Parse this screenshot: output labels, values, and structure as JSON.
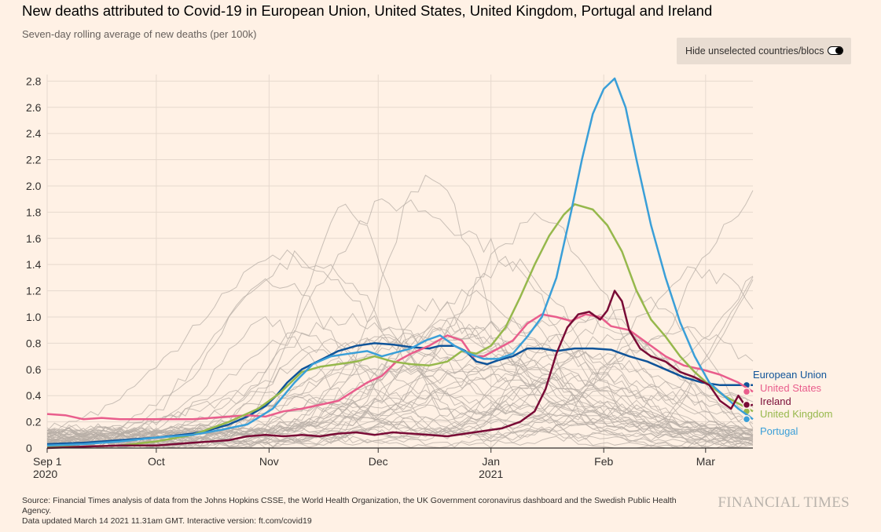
{
  "header": {
    "title": "New deaths attributed to Covid-19 in European Union, United States, United Kingdom, Portugal and Ireland",
    "subtitle": "Seven-day rolling average of new deaths (per 100k)"
  },
  "toggle": {
    "label": "Hide unselected countries/blocs",
    "state": "off"
  },
  "footer": {
    "source": "Source: Financial Times analysis of data from the Johns Hopkins CSSE, the World Health Organization, the UK Government coronavirus dashboard and the Swedish Public Health Agency.",
    "updated": "Data updated March 14 2021 11.31am GMT. Interactive version: ft.com/covid19",
    "brand": "FINANCIAL TIMES"
  },
  "colors": {
    "background": "#fff1e5",
    "grid": "#e6d9ce",
    "axis": "#33302e",
    "background_countries": "#b7ada5",
    "eu": "#0f5499",
    "us": "#e95d8c",
    "uk": "#96b84c",
    "portugal": "#3a9fd8",
    "ireland": "#790b36"
  },
  "chart_data": {
    "type": "line",
    "title": "New deaths attributed to Covid-19 in European Union, United States, United Kingdom, Portugal and Ireland",
    "ylabel": "Seven-day rolling average of new deaths (per 100k)",
    "x_unit": "days since 2020-09-01",
    "xlim": [
      0,
      194
    ],
    "ylim": [
      0,
      2.85
    ],
    "yticks": [
      0,
      0.2,
      0.4,
      0.6,
      0.8,
      1.0,
      1.2,
      1.4,
      1.6,
      1.8,
      2.0,
      2.2,
      2.4,
      2.6,
      2.8
    ],
    "ytick_labels": [
      "0",
      "0.2",
      "0.4",
      "0.6",
      "0.8",
      "1.0",
      "1.2",
      "1.4",
      "1.6",
      "1.8",
      "2.0",
      "2.2",
      "2.4",
      "2.6",
      "2.8"
    ],
    "xticks": [
      {
        "x": 0,
        "label": "Sep 1",
        "sub": "2020"
      },
      {
        "x": 30,
        "label": "Oct",
        "sub": ""
      },
      {
        "x": 61,
        "label": "Nov",
        "sub": ""
      },
      {
        "x": 91,
        "label": "Dec",
        "sub": ""
      },
      {
        "x": 122,
        "label": "Jan",
        "sub": "2021"
      },
      {
        "x": 153,
        "label": "Feb",
        "sub": ""
      },
      {
        "x": 181,
        "label": "Mar",
        "sub": ""
      }
    ],
    "series": [
      {
        "name": "European Union",
        "key": "eu",
        "points": [
          [
            0,
            0.03
          ],
          [
            10,
            0.04
          ],
          [
            20,
            0.06
          ],
          [
            30,
            0.08
          ],
          [
            40,
            0.11
          ],
          [
            45,
            0.14
          ],
          [
            50,
            0.18
          ],
          [
            55,
            0.24
          ],
          [
            60,
            0.32
          ],
          [
            63,
            0.4
          ],
          [
            66,
            0.5
          ],
          [
            70,
            0.6
          ],
          [
            75,
            0.67
          ],
          [
            80,
            0.74
          ],
          [
            85,
            0.78
          ],
          [
            90,
            0.8
          ],
          [
            95,
            0.79
          ],
          [
            100,
            0.77
          ],
          [
            105,
            0.76
          ],
          [
            108,
            0.78
          ],
          [
            112,
            0.78
          ],
          [
            115,
            0.74
          ],
          [
            118,
            0.66
          ],
          [
            121,
            0.64
          ],
          [
            124,
            0.67
          ],
          [
            128,
            0.7
          ],
          [
            132,
            0.76
          ],
          [
            136,
            0.76
          ],
          [
            140,
            0.74
          ],
          [
            145,
            0.76
          ],
          [
            150,
            0.76
          ],
          [
            155,
            0.75
          ],
          [
            160,
            0.7
          ],
          [
            165,
            0.66
          ],
          [
            170,
            0.6
          ],
          [
            175,
            0.54
          ],
          [
            180,
            0.5
          ],
          [
            185,
            0.48
          ],
          [
            190,
            0.48
          ],
          [
            194,
            0.48
          ]
        ]
      },
      {
        "name": "United States",
        "key": "us",
        "points": [
          [
            0,
            0.26
          ],
          [
            5,
            0.25
          ],
          [
            10,
            0.22
          ],
          [
            15,
            0.23
          ],
          [
            20,
            0.22
          ],
          [
            30,
            0.22
          ],
          [
            40,
            0.22
          ],
          [
            45,
            0.23
          ],
          [
            50,
            0.24
          ],
          [
            55,
            0.25
          ],
          [
            60,
            0.24
          ],
          [
            65,
            0.28
          ],
          [
            70,
            0.3
          ],
          [
            75,
            0.33
          ],
          [
            80,
            0.36
          ],
          [
            84,
            0.43
          ],
          [
            88,
            0.5
          ],
          [
            92,
            0.55
          ],
          [
            96,
            0.66
          ],
          [
            100,
            0.72
          ],
          [
            105,
            0.78
          ],
          [
            110,
            0.86
          ],
          [
            114,
            0.82
          ],
          [
            117,
            0.7
          ],
          [
            120,
            0.7
          ],
          [
            124,
            0.76
          ],
          [
            128,
            0.82
          ],
          [
            132,
            0.95
          ],
          [
            136,
            1.02
          ],
          [
            140,
            1.0
          ],
          [
            144,
            0.97
          ],
          [
            148,
            1.02
          ],
          [
            152,
            1.0
          ],
          [
            155,
            0.93
          ],
          [
            160,
            0.9
          ],
          [
            165,
            0.8
          ],
          [
            170,
            0.7
          ],
          [
            175,
            0.63
          ],
          [
            180,
            0.6
          ],
          [
            185,
            0.56
          ],
          [
            190,
            0.5
          ],
          [
            194,
            0.43
          ]
        ]
      },
      {
        "name": "United Kingdom",
        "key": "uk",
        "points": [
          [
            0,
            0.01
          ],
          [
            10,
            0.01
          ],
          [
            20,
            0.02
          ],
          [
            30,
            0.05
          ],
          [
            40,
            0.1
          ],
          [
            50,
            0.2
          ],
          [
            58,
            0.3
          ],
          [
            64,
            0.42
          ],
          [
            70,
            0.58
          ],
          [
            75,
            0.62
          ],
          [
            80,
            0.64
          ],
          [
            85,
            0.66
          ],
          [
            90,
            0.7
          ],
          [
            95,
            0.66
          ],
          [
            100,
            0.64
          ],
          [
            105,
            0.63
          ],
          [
            110,
            0.66
          ],
          [
            114,
            0.74
          ],
          [
            118,
            0.72
          ],
          [
            122,
            0.78
          ],
          [
            126,
            0.92
          ],
          [
            130,
            1.15
          ],
          [
            134,
            1.4
          ],
          [
            138,
            1.62
          ],
          [
            142,
            1.78
          ],
          [
            145,
            1.86
          ],
          [
            150,
            1.82
          ],
          [
            154,
            1.7
          ],
          [
            158,
            1.5
          ],
          [
            162,
            1.2
          ],
          [
            166,
            0.98
          ],
          [
            170,
            0.85
          ],
          [
            174,
            0.7
          ],
          [
            178,
            0.58
          ],
          [
            182,
            0.48
          ],
          [
            186,
            0.4
          ],
          [
            190,
            0.34
          ],
          [
            194,
            0.28
          ]
        ]
      },
      {
        "name": "Portugal",
        "key": "portugal",
        "points": [
          [
            0,
            0.02
          ],
          [
            10,
            0.03
          ],
          [
            20,
            0.05
          ],
          [
            30,
            0.08
          ],
          [
            40,
            0.1
          ],
          [
            48,
            0.14
          ],
          [
            55,
            0.18
          ],
          [
            62,
            0.3
          ],
          [
            68,
            0.5
          ],
          [
            73,
            0.64
          ],
          [
            78,
            0.7
          ],
          [
            83,
            0.72
          ],
          [
            88,
            0.74
          ],
          [
            92,
            0.7
          ],
          [
            96,
            0.73
          ],
          [
            100,
            0.76
          ],
          [
            104,
            0.82
          ],
          [
            108,
            0.86
          ],
          [
            112,
            0.78
          ],
          [
            116,
            0.72
          ],
          [
            120,
            0.68
          ],
          [
            124,
            0.68
          ],
          [
            128,
            0.72
          ],
          [
            132,
            0.85
          ],
          [
            136,
            1.0
          ],
          [
            140,
            1.3
          ],
          [
            144,
            1.8
          ],
          [
            147,
            2.2
          ],
          [
            150,
            2.55
          ],
          [
            153,
            2.74
          ],
          [
            156,
            2.82
          ],
          [
            159,
            2.6
          ],
          [
            162,
            2.2
          ],
          [
            166,
            1.7
          ],
          [
            170,
            1.3
          ],
          [
            174,
            0.96
          ],
          [
            178,
            0.7
          ],
          [
            182,
            0.5
          ],
          [
            186,
            0.4
          ],
          [
            190,
            0.3
          ],
          [
            194,
            0.22
          ]
        ]
      },
      {
        "name": "Ireland",
        "key": "ireland",
        "points": [
          [
            0,
            0.0
          ],
          [
            10,
            0.01
          ],
          [
            20,
            0.02
          ],
          [
            30,
            0.02
          ],
          [
            40,
            0.04
          ],
          [
            50,
            0.06
          ],
          [
            55,
            0.09
          ],
          [
            60,
            0.1
          ],
          [
            65,
            0.09
          ],
          [
            70,
            0.1
          ],
          [
            75,
            0.09
          ],
          [
            80,
            0.11
          ],
          [
            85,
            0.12
          ],
          [
            90,
            0.1
          ],
          [
            95,
            0.12
          ],
          [
            100,
            0.11
          ],
          [
            105,
            0.1
          ],
          [
            110,
            0.09
          ],
          [
            115,
            0.11
          ],
          [
            120,
            0.13
          ],
          [
            125,
            0.15
          ],
          [
            130,
            0.2
          ],
          [
            134,
            0.28
          ],
          [
            137,
            0.45
          ],
          [
            140,
            0.72
          ],
          [
            143,
            0.92
          ],
          [
            146,
            1.02
          ],
          [
            149,
            1.04
          ],
          [
            152,
            0.98
          ],
          [
            154,
            1.05
          ],
          [
            156,
            1.2
          ],
          [
            158,
            1.12
          ],
          [
            160,
            0.9
          ],
          [
            163,
            0.76
          ],
          [
            166,
            0.7
          ],
          [
            170,
            0.66
          ],
          [
            174,
            0.58
          ],
          [
            178,
            0.54
          ],
          [
            182,
            0.48
          ],
          [
            185,
            0.36
          ],
          [
            188,
            0.3
          ],
          [
            190,
            0.4
          ],
          [
            192,
            0.32
          ],
          [
            194,
            0.33
          ]
        ]
      }
    ],
    "background_series_count": 45,
    "end_labels": [
      {
        "key": "eu",
        "label": "European Union"
      },
      {
        "key": "us",
        "label": "United States"
      },
      {
        "key": "ireland",
        "label": "Ireland"
      },
      {
        "key": "uk",
        "label": "United Kingdom"
      },
      {
        "key": "portugal",
        "label": "Portugal"
      }
    ]
  }
}
